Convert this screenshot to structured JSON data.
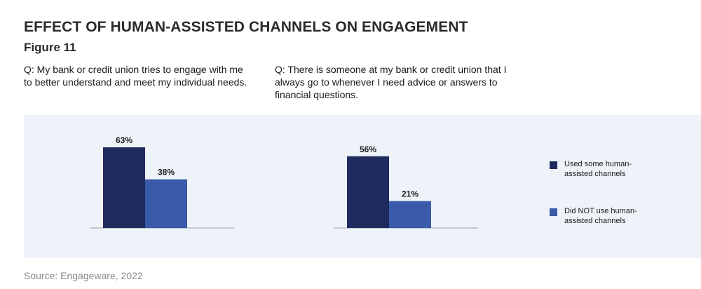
{
  "title": "EFFECT OF HUMAN-ASSISTED CHANNELS ON ENGAGEMENT",
  "subtitle": "Figure 11",
  "source": "Source: Engageware, 2022",
  "colors": {
    "panel": "#eef2f9",
    "used": "#1f2a5e",
    "not_used": "#3a5ba9",
    "axis": "#9aa0a8"
  },
  "chart_data": {
    "type": "bar",
    "categories": [
      "Q: My bank or credit union tries to engage with me to better understand and meet my individual needs.",
      "Q: There is someone at my bank or credit union that I always go to whenever I need advice or answers to financial questions."
    ],
    "series": [
      {
        "name": "Used some human-assisted channels",
        "values": [
          63,
          56
        ],
        "labels": [
          "63%",
          "56%"
        ],
        "color": "#1f2a5e"
      },
      {
        "name": "Did NOT use human-assisted channels",
        "values": [
          38,
          21
        ],
        "labels": [
          "38%",
          "21%"
        ],
        "color": "#3a5ba9"
      }
    ],
    "ylim": [
      0,
      100
    ],
    "grid": false,
    "legend_position": "right"
  }
}
